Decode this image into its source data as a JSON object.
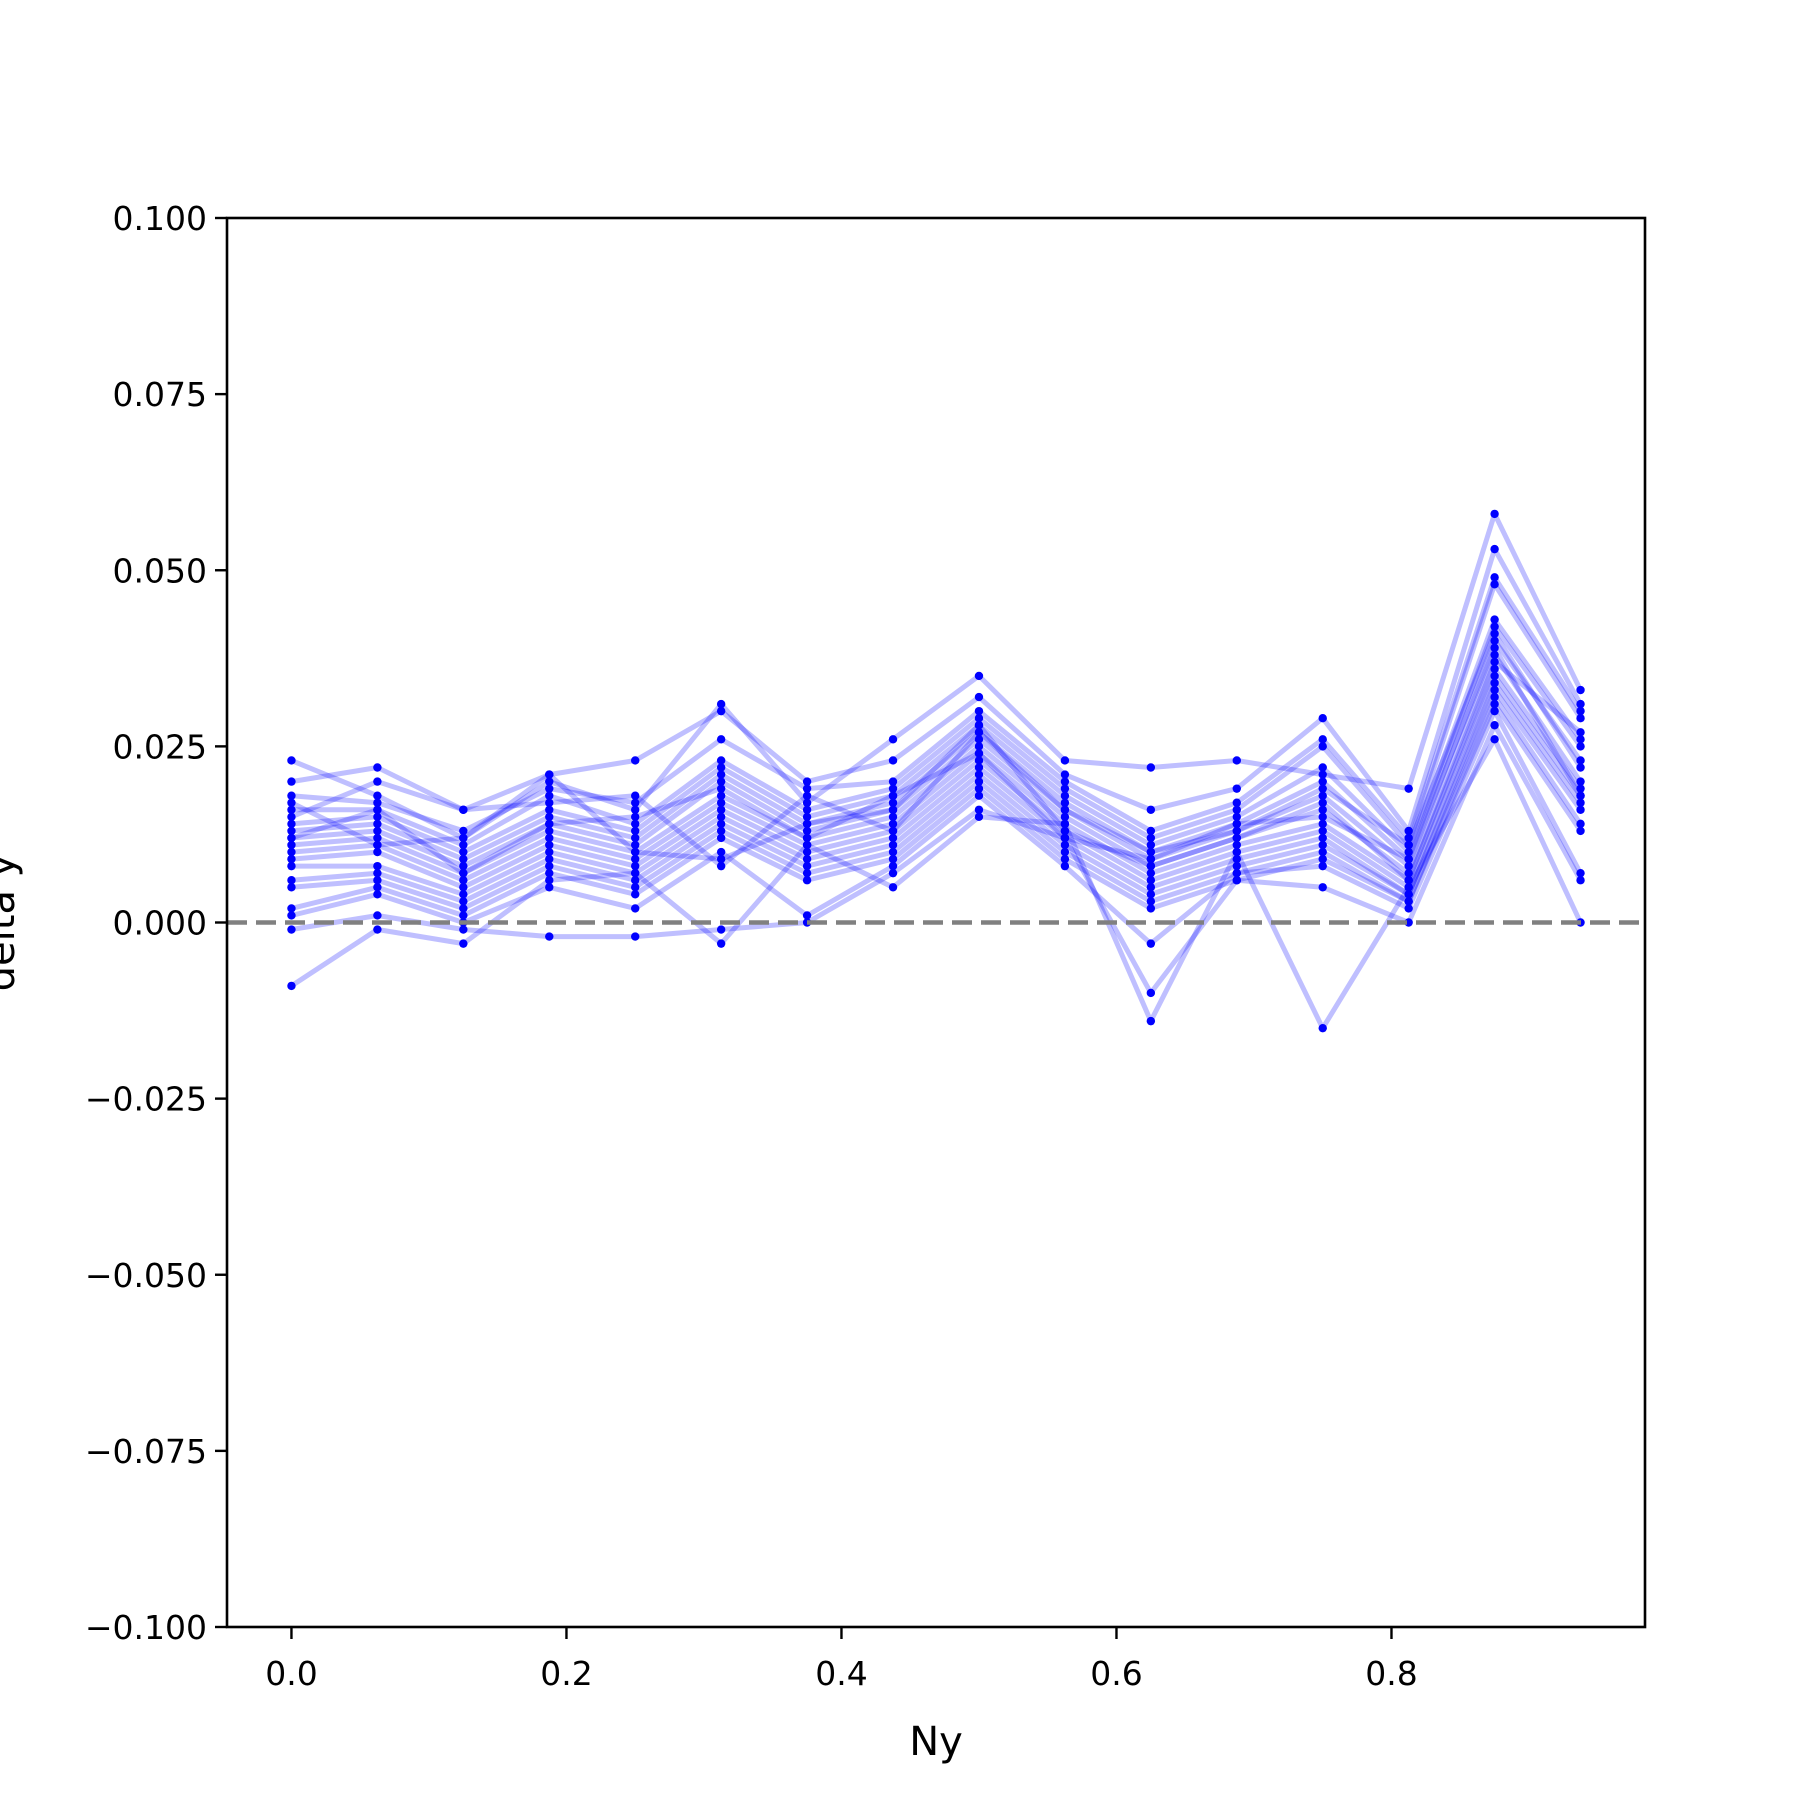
{
  "chart_data": {
    "type": "line",
    "title": "",
    "xlabel": "Ny",
    "ylabel": "delta y",
    "xlim": [
      -0.046875,
      0.984375
    ],
    "ylim": [
      -0.1,
      0.1
    ],
    "x_ticks": [
      "0.0",
      "0.2",
      "0.4",
      "0.6",
      "0.8"
    ],
    "x_tick_values": [
      0.0,
      0.2,
      0.4,
      0.6,
      0.8
    ],
    "y_ticks": [
      "0.100",
      "0.075",
      "0.050",
      "0.025",
      "0.000",
      "−0.025",
      "−0.050",
      "−0.075",
      "−0.100"
    ],
    "y_tick_values": [
      0.1,
      0.075,
      0.05,
      0.025,
      0.0,
      -0.025,
      -0.05,
      -0.075,
      -0.1
    ],
    "grid": false,
    "legend": "none",
    "reference_line": {
      "y": 0.0,
      "style": "dashed",
      "color": "#808080"
    },
    "series_color": "#0000ff",
    "series_line_opacity": 0.25,
    "x": [
      0.0,
      0.0625,
      0.125,
      0.1875,
      0.25,
      0.3125,
      0.375,
      0.4375,
      0.5,
      0.5625,
      0.625,
      0.6875,
      0.75,
      0.8125,
      0.875,
      0.9375
    ],
    "series": [
      {
        "values": [
          0.023,
          0.018,
          0.012,
          0.02,
          0.016,
          0.031,
          0.017,
          0.026,
          0.035,
          0.023,
          0.022,
          0.023,
          0.021,
          0.019,
          0.058,
          0.033
        ]
      },
      {
        "values": [
          0.02,
          0.022,
          0.016,
          0.021,
          0.023,
          0.03,
          0.02,
          0.023,
          0.032,
          0.021,
          0.016,
          0.019,
          0.029,
          0.013,
          0.053,
          0.031
        ]
      },
      {
        "values": [
          0.018,
          0.017,
          0.013,
          0.019,
          0.017,
          0.026,
          0.019,
          0.02,
          0.03,
          0.02,
          0.013,
          0.017,
          0.026,
          0.012,
          0.049,
          0.03
        ]
      },
      {
        "values": [
          0.016,
          0.016,
          0.011,
          0.018,
          0.014,
          0.023,
          0.016,
          0.019,
          0.029,
          0.019,
          0.012,
          0.016,
          0.025,
          0.011,
          0.048,
          0.029
        ]
      },
      {
        "values": [
          0.014,
          0.015,
          0.01,
          0.016,
          0.013,
          0.022,
          0.015,
          0.018,
          0.028,
          0.018,
          0.011,
          0.015,
          0.022,
          0.01,
          0.043,
          0.026
        ]
      },
      {
        "values": [
          0.013,
          0.014,
          0.009,
          0.015,
          0.012,
          0.021,
          0.014,
          0.017,
          0.027,
          0.017,
          0.01,
          0.014,
          0.02,
          0.009,
          0.042,
          0.025
        ]
      },
      {
        "values": [
          0.012,
          0.013,
          0.008,
          0.014,
          0.011,
          0.02,
          0.013,
          0.016,
          0.026,
          0.016,
          0.009,
          0.013,
          0.018,
          0.008,
          0.04,
          0.023
        ]
      },
      {
        "values": [
          0.011,
          0.012,
          0.007,
          0.013,
          0.01,
          0.018,
          0.012,
          0.015,
          0.025,
          0.015,
          0.008,
          0.012,
          0.016,
          0.007,
          0.038,
          0.02
        ]
      },
      {
        "values": [
          0.01,
          0.011,
          0.006,
          0.012,
          0.009,
          0.017,
          0.011,
          0.014,
          0.024,
          0.014,
          0.007,
          0.011,
          0.014,
          0.006,
          0.036,
          0.019
        ]
      },
      {
        "values": [
          0.009,
          0.01,
          0.005,
          0.011,
          0.008,
          0.016,
          0.01,
          0.013,
          0.023,
          0.013,
          0.006,
          0.01,
          0.013,
          0.005,
          0.035,
          0.018
        ]
      },
      {
        "values": [
          0.008,
          0.008,
          0.004,
          0.01,
          0.007,
          0.015,
          0.009,
          0.012,
          0.022,
          0.012,
          0.005,
          0.009,
          0.012,
          0.004,
          0.034,
          0.017
        ]
      },
      {
        "values": [
          0.006,
          0.007,
          0.003,
          0.009,
          0.006,
          0.014,
          0.008,
          0.011,
          0.021,
          0.011,
          0.004,
          0.008,
          0.011,
          0.004,
          0.033,
          0.016
        ]
      },
      {
        "values": [
          0.005,
          0.006,
          0.002,
          0.008,
          0.005,
          0.013,
          0.007,
          0.01,
          0.02,
          0.01,
          0.003,
          0.007,
          0.01,
          0.003,
          0.032,
          0.014
        ]
      },
      {
        "values": [
          0.002,
          0.005,
          0.001,
          0.007,
          0.004,
          0.012,
          0.006,
          0.009,
          0.019,
          0.009,
          0.002,
          0.006,
          0.009,
          0.003,
          0.031,
          0.013
        ]
      },
      {
        "values": [
          0.001,
          0.004,
          0.0,
          0.005,
          0.002,
          0.01,
          0.001,
          0.008,
          0.018,
          0.008,
          -0.003,
          0.007,
          0.008,
          0.002,
          0.03,
          0.007
        ]
      },
      {
        "values": [
          -0.001,
          0.001,
          -0.001,
          -0.002,
          -0.002,
          -0.001,
          0.0,
          0.007,
          0.016,
          0.012,
          -0.01,
          0.006,
          0.005,
          0.0,
          0.028,
          0.006
        ]
      },
      {
        "values": [
          -0.009,
          -0.001,
          -0.003,
          0.006,
          0.007,
          -0.003,
          0.011,
          0.005,
          0.015,
          0.014,
          -0.014,
          0.01,
          -0.015,
          0.005,
          0.026,
          0.0
        ]
      },
      {
        "values": [
          0.015,
          0.02,
          0.016,
          0.017,
          0.018,
          0.008,
          0.018,
          0.013,
          0.027,
          0.016,
          0.01,
          0.013,
          0.019,
          0.011,
          0.041,
          0.022
        ]
      },
      {
        "values": [
          0.017,
          0.011,
          0.012,
          0.021,
          0.01,
          0.009,
          0.014,
          0.016,
          0.028,
          0.013,
          0.008,
          0.012,
          0.017,
          0.006,
          0.037,
          0.027
        ]
      },
      {
        "values": [
          0.012,
          0.016,
          0.007,
          0.014,
          0.015,
          0.019,
          0.012,
          0.018,
          0.024,
          0.012,
          0.009,
          0.014,
          0.015,
          0.009,
          0.039,
          0.018
        ]
      }
    ]
  }
}
